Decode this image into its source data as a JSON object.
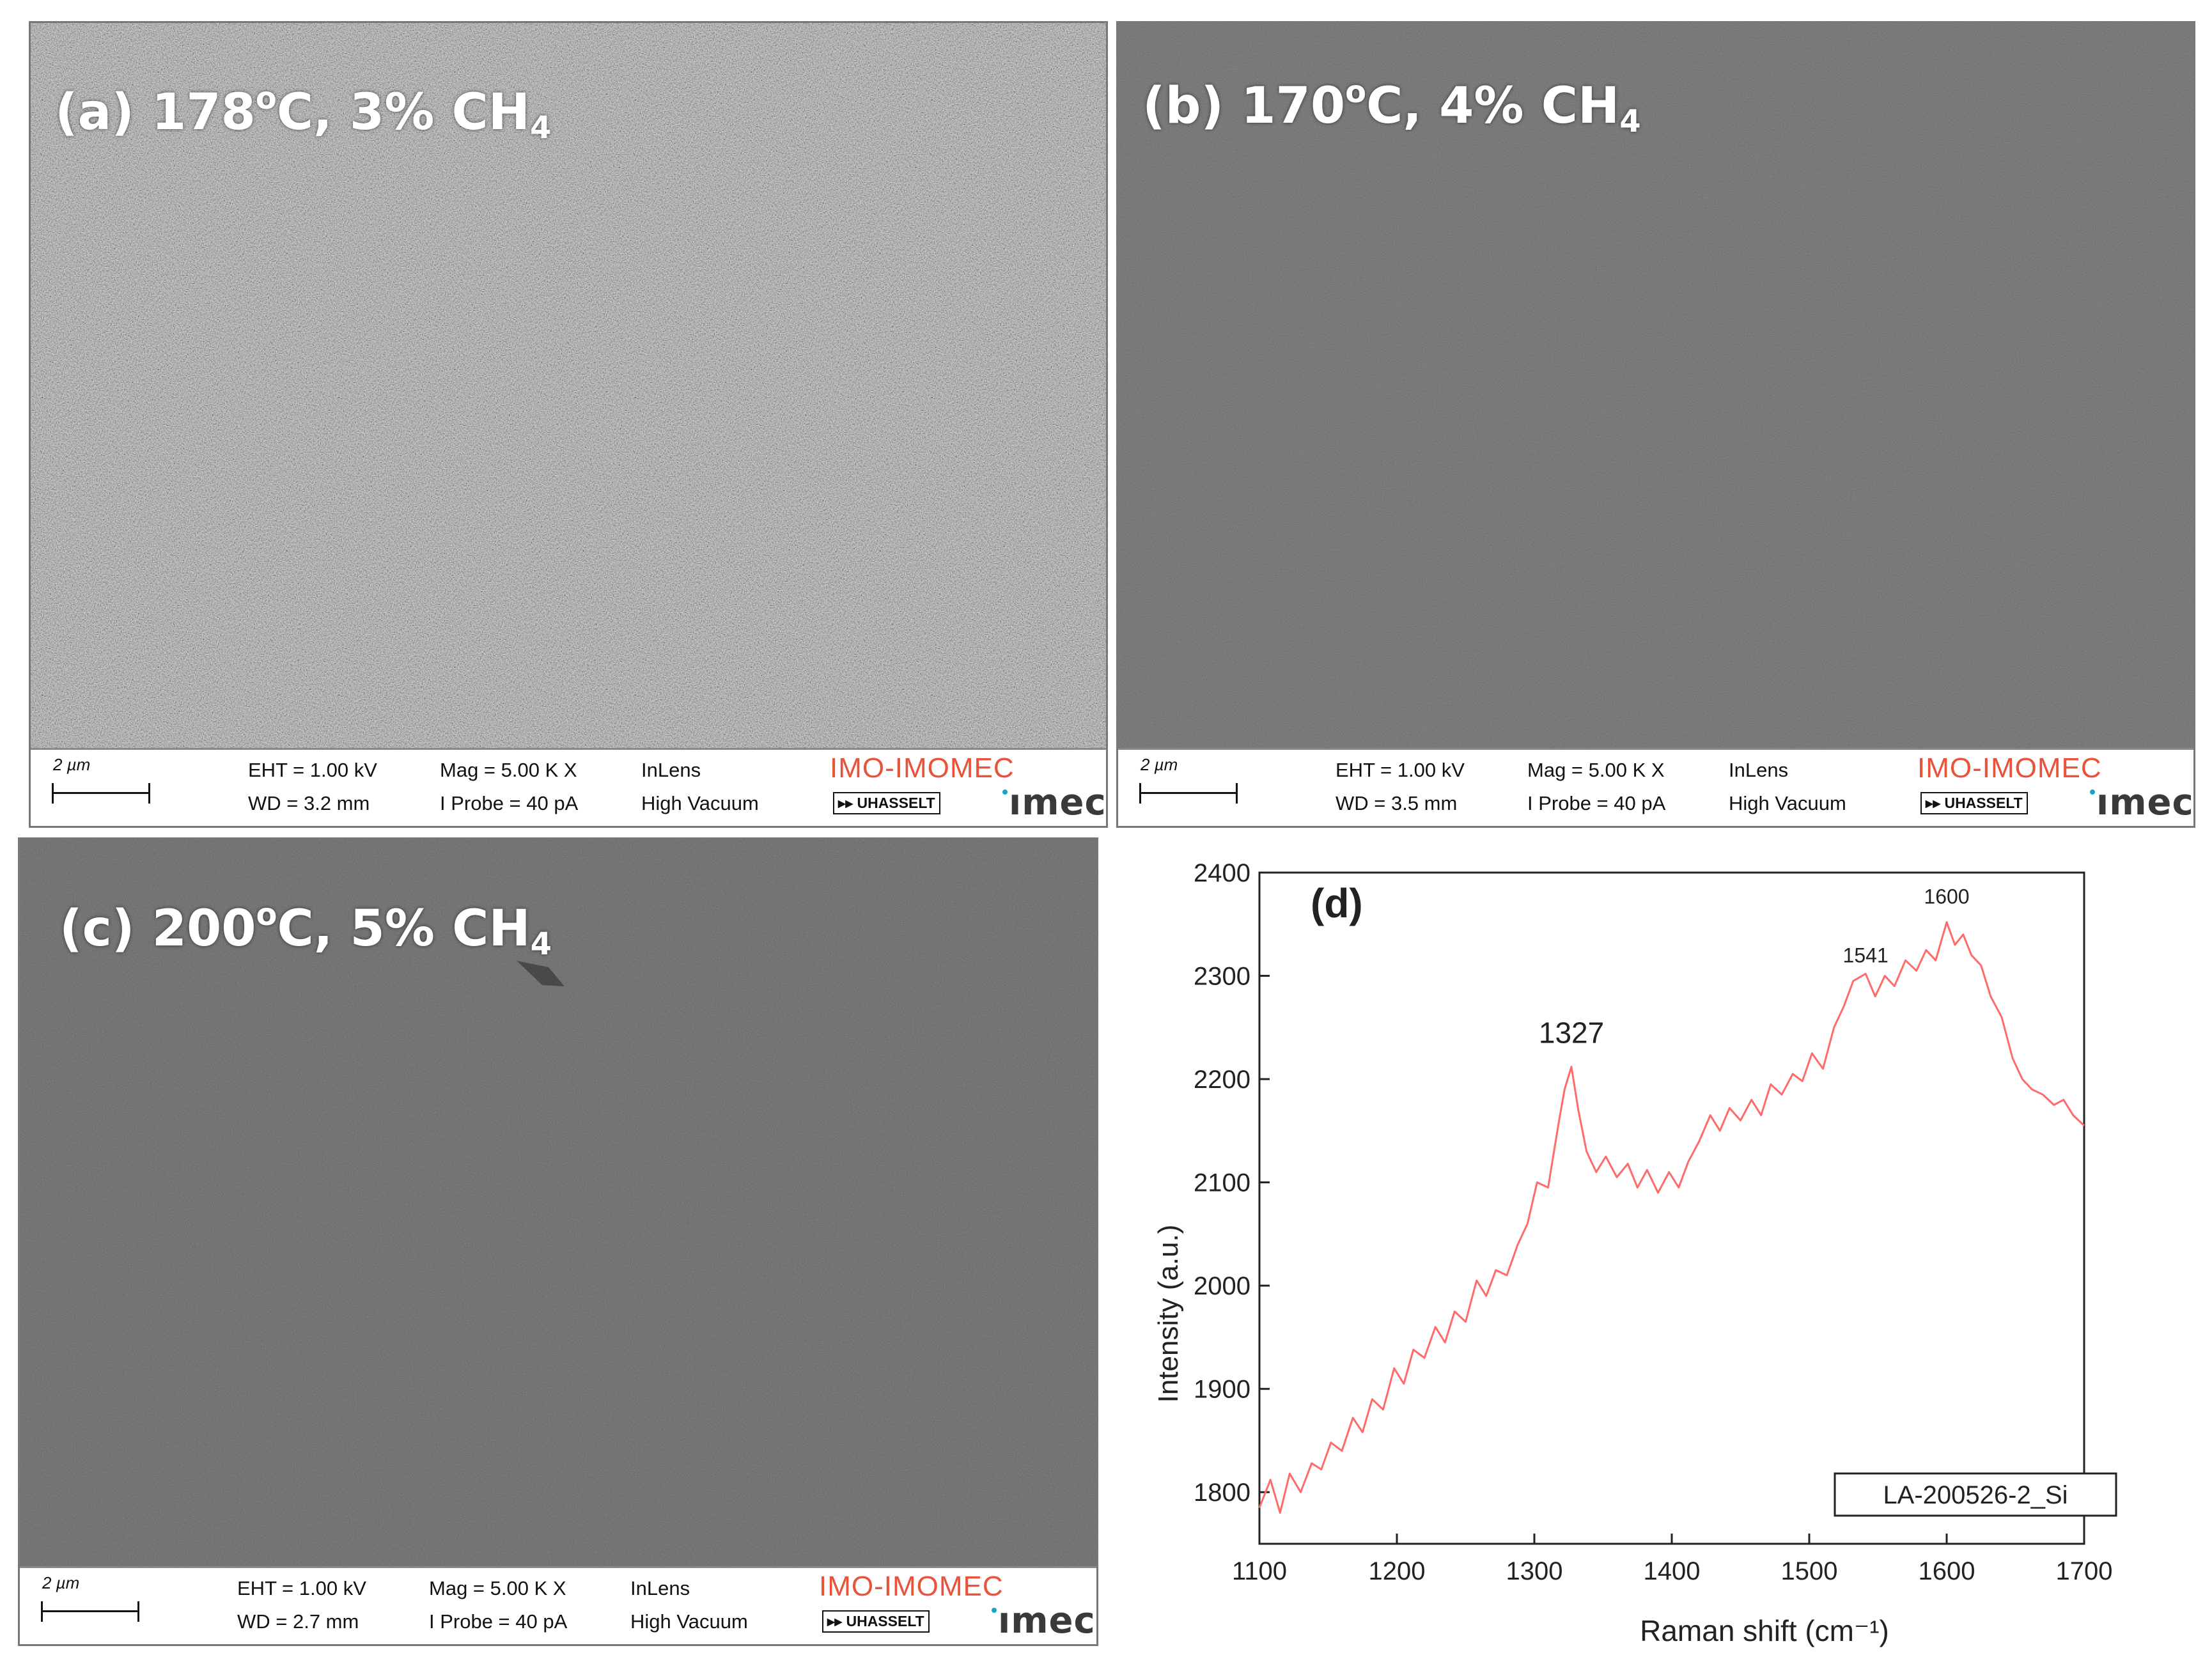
{
  "panels": [
    {
      "id": "a",
      "label_prefix": "(a) 178",
      "label_sup": "o",
      "label_mid": "C, 3% CH",
      "label_sub": "4",
      "scale": "2 µm",
      "eht": "EHT =  1.00 kV",
      "wd": "WD = 3.2 mm",
      "mag": "Mag =    5.00 K X",
      "iprobe": "I Probe =     40 pA",
      "detector": "InLens",
      "vacuum": "High Vacuum",
      "logo_imo": "IMO-IMOMEC",
      "logo_uhasselt": "▸▸ UHASSELT",
      "logo_imec": "ımec",
      "image_tone": "#8e8e8e"
    },
    {
      "id": "b",
      "label_prefix": "(b) 170",
      "label_sup": "o",
      "label_mid": "C, 4% CH",
      "label_sub": "4",
      "scale": "2 µm",
      "eht": "EHT =  1.00 kV",
      "wd": "WD = 3.5 mm",
      "mag": "Mag =    5.00 K X",
      "iprobe": "I Probe =     40 pA",
      "detector": "InLens",
      "vacuum": "High Vacuum",
      "logo_imo": "IMO-IMOMEC",
      "logo_uhasselt": "▸▸ UHASSELT",
      "logo_imec": "ımec",
      "image_tone": "#5a5a5a"
    },
    {
      "id": "c",
      "label_prefix": "(c) 200",
      "label_sup": "o",
      "label_mid": "C, 5% CH",
      "label_sub": "4",
      "scale": "2 µm",
      "eht": "EHT =  1.00 kV",
      "wd": "WD = 2.7 mm",
      "mag": "Mag =    5.00 K X",
      "iprobe": "I Probe =     40 pA",
      "detector": "InLens",
      "vacuum": "High Vacuum",
      "logo_imo": "IMO-IMOMEC",
      "logo_uhasselt": "▸▸ UHASSELT",
      "logo_imec": "ımec",
      "image_tone": "#585858"
    }
  ],
  "chart_data": {
    "type": "line",
    "panel_label": "(d)",
    "xlabel": "Raman shift (cm⁻¹)",
    "ylabel": "Intensity (a.u.)",
    "xlim": [
      1100,
      1700
    ],
    "ylim": [
      1750,
      2400
    ],
    "xticks": [
      1100,
      1200,
      1300,
      1400,
      1500,
      1600,
      1700
    ],
    "yticks": [
      1800,
      1900,
      2000,
      2100,
      2200,
      2300,
      2400
    ],
    "grid": false,
    "line_color": "#ff6b6b",
    "legend": "LA-200526-2_Si",
    "legend_placement": "bottom-right",
    "annotations": [
      {
        "text": "1327",
        "x": 1327,
        "y": 2235
      },
      {
        "text": "1541",
        "x": 1541,
        "y": 2313
      },
      {
        "text": "1600",
        "x": 1600,
        "y": 2370
      }
    ],
    "x": [
      1100,
      1108,
      1115,
      1122,
      1130,
      1138,
      1145,
      1152,
      1160,
      1168,
      1175,
      1182,
      1190,
      1198,
      1205,
      1212,
      1220,
      1228,
      1235,
      1242,
      1250,
      1258,
      1265,
      1272,
      1280,
      1288,
      1295,
      1302,
      1310,
      1318,
      1322,
      1327,
      1332,
      1338,
      1345,
      1352,
      1360,
      1368,
      1375,
      1382,
      1390,
      1398,
      1405,
      1412,
      1420,
      1428,
      1435,
      1442,
      1450,
      1458,
      1465,
      1472,
      1480,
      1488,
      1495,
      1502,
      1510,
      1518,
      1525,
      1532,
      1541,
      1548,
      1555,
      1562,
      1570,
      1578,
      1585,
      1592,
      1600,
      1606,
      1612,
      1618,
      1625,
      1632,
      1640,
      1648,
      1655,
      1662,
      1670,
      1678,
      1685,
      1692,
      1700
    ],
    "y": [
      1785,
      1812,
      1780,
      1818,
      1800,
      1828,
      1822,
      1848,
      1840,
      1872,
      1858,
      1890,
      1880,
      1920,
      1905,
      1938,
      1930,
      1960,
      1945,
      1975,
      1965,
      2005,
      1990,
      2015,
      2010,
      2040,
      2060,
      2100,
      2095,
      2160,
      2190,
      2212,
      2170,
      2130,
      2110,
      2125,
      2105,
      2118,
      2095,
      2112,
      2090,
      2110,
      2095,
      2120,
      2140,
      2165,
      2150,
      2172,
      2160,
      2180,
      2165,
      2195,
      2185,
      2205,
      2198,
      2225,
      2210,
      2250,
      2270,
      2295,
      2302,
      2280,
      2300,
      2290,
      2315,
      2305,
      2325,
      2315,
      2352,
      2330,
      2340,
      2320,
      2310,
      2280,
      2260,
      2220,
      2200,
      2190,
      2185,
      2175,
      2180,
      2165,
      2155
    ]
  }
}
